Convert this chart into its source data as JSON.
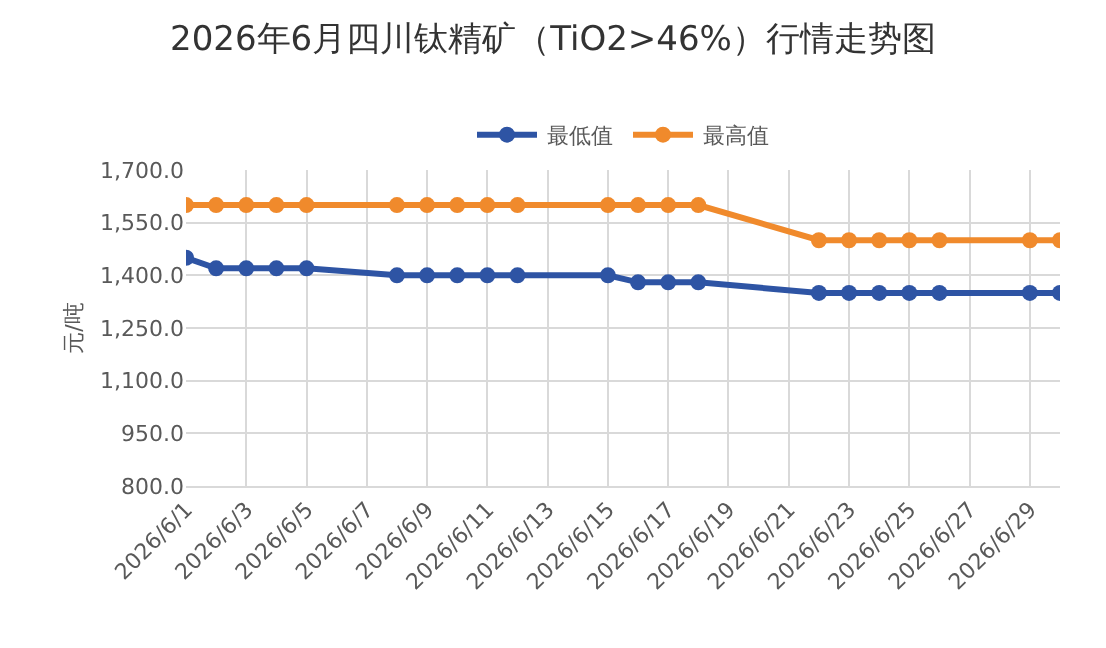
{
  "chart_data": {
    "type": "line",
    "title": "2026年6月四川钛精矿（TiO2>46%）行情走势图",
    "ylabel": "元/吨",
    "x": [
      "2026-06-01",
      "2026-06-02",
      "2026-06-03",
      "2026-06-04",
      "2026-06-05",
      "2026-06-08",
      "2026-06-09",
      "2026-06-10",
      "2026-06-11",
      "2026-06-12",
      "2026-06-15",
      "2026-06-16",
      "2026-06-17",
      "2026-06-18",
      "2026-06-22",
      "2026-06-23",
      "2026-06-24",
      "2026-06-25",
      "2026-06-26",
      "2026-06-29",
      "2026-06-30"
    ],
    "series": [
      {
        "name": "最低值",
        "color": "#2e54a4",
        "values": [
          1450,
          1420,
          1420,
          1420,
          1420,
          1400,
          1400,
          1400,
          1400,
          1400,
          1400,
          1380,
          1380,
          1380,
          1350,
          1350,
          1350,
          1350,
          1350,
          1350,
          1350
        ]
      },
      {
        "name": "最高值",
        "color": "#f08a2c",
        "values": [
          1600,
          1600,
          1600,
          1600,
          1600,
          1600,
          1600,
          1600,
          1600,
          1600,
          1600,
          1600,
          1600,
          1600,
          1500,
          1500,
          1500,
          1500,
          1500,
          1500,
          1500
        ]
      }
    ],
    "xlim": [
      "2026-06-01",
      "2026-06-30"
    ],
    "xticks": [
      {
        "value": "2026-06-01",
        "label": "2026/6/1"
      },
      {
        "value": "2026-06-03",
        "label": "2026/6/3"
      },
      {
        "value": "2026-06-05",
        "label": "2026/6/5"
      },
      {
        "value": "2026-06-07",
        "label": "2026/6/7"
      },
      {
        "value": "2026-06-09",
        "label": "2026/6/9"
      },
      {
        "value": "2026-06-11",
        "label": "2026/6/11"
      },
      {
        "value": "2026-06-13",
        "label": "2026/6/13"
      },
      {
        "value": "2026-06-15",
        "label": "2026/6/15"
      },
      {
        "value": "2026-06-17",
        "label": "2026/6/17"
      },
      {
        "value": "2026-06-19",
        "label": "2026/6/19"
      },
      {
        "value": "2026-06-21",
        "label": "2026/6/21"
      },
      {
        "value": "2026-06-23",
        "label": "2026/6/23"
      },
      {
        "value": "2026-06-25",
        "label": "2026/6/25"
      },
      {
        "value": "2026-06-27",
        "label": "2026/6/27"
      },
      {
        "value": "2026-06-29",
        "label": "2026/6/29"
      }
    ],
    "ylim": [
      800,
      1700
    ],
    "yticks": [
      {
        "value": 800,
        "label": "800.0"
      },
      {
        "value": 950,
        "label": "950.0"
      },
      {
        "value": 1100,
        "label": "1,100.0"
      },
      {
        "value": 1250,
        "label": "1,250.0"
      },
      {
        "value": 1400,
        "label": "1,400.0"
      },
      {
        "value": 1550,
        "label": "1,550.0"
      },
      {
        "value": 1700,
        "label": "1,700.0"
      }
    ],
    "grid": true,
    "legend": "top",
    "marker": "circle",
    "line_style": "solid"
  }
}
